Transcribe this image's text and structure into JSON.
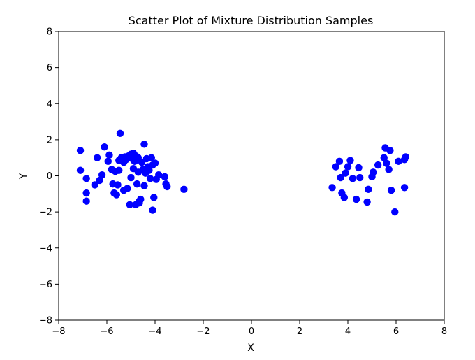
{
  "chart_data": {
    "type": "scatter",
    "title": "Scatter Plot of Mixture Distribution Samples",
    "xlabel": "X",
    "ylabel": "Y",
    "xlim": [
      -8,
      8
    ],
    "ylim": [
      -8,
      8
    ],
    "xticks": [
      -8,
      -6,
      -4,
      -2,
      0,
      2,
      4,
      6,
      8
    ],
    "yticks": [
      -8,
      -6,
      -4,
      -2,
      0,
      2,
      4,
      6,
      8
    ],
    "grid": false,
    "marker_color": "#0000ff",
    "series": [
      {
        "points": [
          [
            -7.1,
            1.4
          ],
          [
            -7.1,
            0.3
          ],
          [
            -6.85,
            -0.15
          ],
          [
            -6.85,
            -0.95
          ],
          [
            -6.85,
            -1.4
          ],
          [
            -6.5,
            -0.5
          ],
          [
            -6.4,
            1.0
          ],
          [
            -6.3,
            -0.25
          ],
          [
            -6.2,
            0.05
          ],
          [
            -6.1,
            1.6
          ],
          [
            -5.95,
            0.8
          ],
          [
            -5.9,
            1.15
          ],
          [
            -5.8,
            0.35
          ],
          [
            -5.75,
            -0.45
          ],
          [
            -5.7,
            -0.95
          ],
          [
            -5.65,
            0.25
          ],
          [
            -5.6,
            -1.05
          ],
          [
            -5.55,
            -0.5
          ],
          [
            -5.5,
            0.3
          ],
          [
            -5.5,
            0.85
          ],
          [
            -5.45,
            2.35
          ],
          [
            -5.4,
            1.0
          ],
          [
            -5.3,
            0.75
          ],
          [
            -5.3,
            -0.8
          ],
          [
            -5.25,
            1.05
          ],
          [
            -5.2,
            0.9
          ],
          [
            -5.15,
            -0.7
          ],
          [
            -5.1,
            1.1
          ],
          [
            -5.05,
            -1.6
          ],
          [
            -5.0,
            1.2
          ],
          [
            -5.0,
            -0.1
          ],
          [
            -4.95,
            0.95
          ],
          [
            -4.9,
            0.4
          ],
          [
            -4.9,
            1.25
          ],
          [
            -4.85,
            0.8
          ],
          [
            -4.8,
            1.1
          ],
          [
            -4.8,
            -1.6
          ],
          [
            -4.75,
            -0.45
          ],
          [
            -4.7,
            0.2
          ],
          [
            -4.7,
            1.0
          ],
          [
            -4.65,
            -1.4
          ],
          [
            -4.65,
            -1.5
          ],
          [
            -4.6,
            -1.3
          ],
          [
            -4.55,
            0.75
          ],
          [
            -4.5,
            0.35
          ],
          [
            -4.45,
            1.75
          ],
          [
            -4.45,
            -0.55
          ],
          [
            -4.4,
            0.15
          ],
          [
            -4.35,
            0.95
          ],
          [
            -4.3,
            0.5
          ],
          [
            -4.25,
            0.3
          ],
          [
            -4.2,
            -0.15
          ],
          [
            -4.15,
            1.0
          ],
          [
            -4.1,
            -1.9
          ],
          [
            -4.1,
            0.6
          ],
          [
            -4.05,
            -1.2
          ],
          [
            -4.0,
            0.7
          ],
          [
            -3.95,
            -0.2
          ],
          [
            -3.85,
            0.05
          ],
          [
            -3.6,
            -0.05
          ],
          [
            -3.55,
            -0.45
          ],
          [
            -3.5,
            -0.6
          ],
          [
            -2.8,
            -0.75
          ],
          [
            3.35,
            -0.65
          ],
          [
            3.5,
            0.5
          ],
          [
            3.65,
            0.8
          ],
          [
            3.7,
            -0.1
          ],
          [
            3.75,
            -0.95
          ],
          [
            3.85,
            -1.2
          ],
          [
            3.9,
            0.15
          ],
          [
            4.0,
            0.5
          ],
          [
            4.1,
            0.85
          ],
          [
            4.2,
            -0.15
          ],
          [
            4.35,
            -1.3
          ],
          [
            4.45,
            0.45
          ],
          [
            4.5,
            -0.1
          ],
          [
            4.8,
            -1.45
          ],
          [
            4.85,
            -0.75
          ],
          [
            5.0,
            -0.05
          ],
          [
            5.05,
            0.2
          ],
          [
            5.25,
            0.6
          ],
          [
            5.5,
            1.0
          ],
          [
            5.55,
            1.55
          ],
          [
            5.6,
            0.7
          ],
          [
            5.7,
            0.35
          ],
          [
            5.75,
            1.4
          ],
          [
            5.8,
            -0.8
          ],
          [
            5.95,
            -2.0
          ],
          [
            6.1,
            0.8
          ],
          [
            6.35,
            0.9
          ],
          [
            6.35,
            -0.65
          ],
          [
            6.4,
            1.05
          ]
        ]
      }
    ]
  }
}
